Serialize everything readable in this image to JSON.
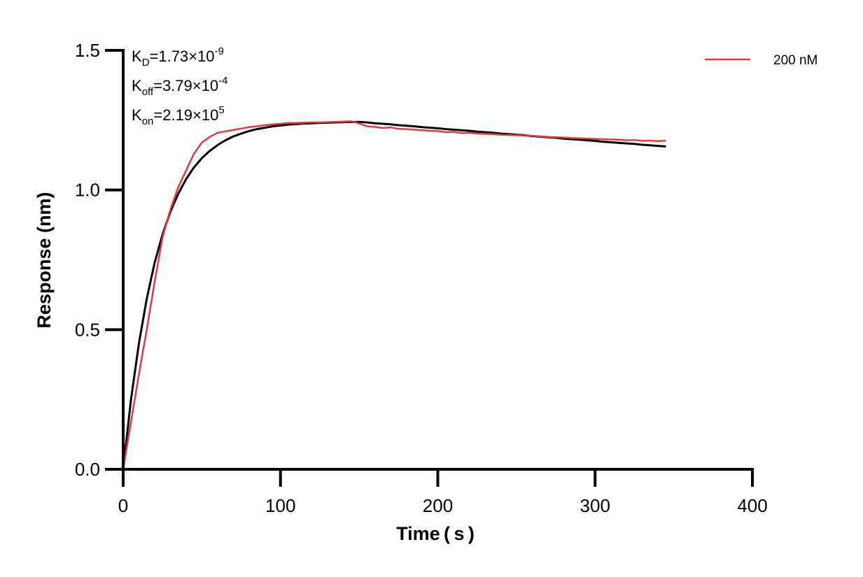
{
  "chart_data": {
    "type": "line",
    "xlabel": "Time ( s )",
    "ylabel": "Response (nm)",
    "xlim": [
      0,
      400
    ],
    "ylim": [
      0,
      1.5
    ],
    "xticks": [
      "0",
      "100",
      "200",
      "300",
      "400"
    ],
    "yticks": [
      "0.0",
      "0.5",
      "1.0",
      "1.5"
    ],
    "xtick_values": [
      0,
      100,
      200,
      300,
      400
    ],
    "ytick_values": [
      0,
      0.5,
      1.0,
      1.5
    ],
    "grid": false,
    "legend_position": "top-right",
    "annotations": [
      {
        "base": "K",
        "sub": "D",
        "text": "=1.73×10",
        "sup": "-9"
      },
      {
        "base": "K",
        "sub": "off",
        "text": "=3.79×10",
        "sup": "-4"
      },
      {
        "base": "K",
        "sub": "on",
        "text": "=2.19×10",
        "sup": "5"
      }
    ],
    "x": [
      0,
      5,
      10,
      15,
      20,
      25,
      30,
      35,
      40,
      45,
      50,
      55,
      60,
      65,
      70,
      75,
      80,
      85,
      90,
      95,
      100,
      105,
      110,
      115,
      120,
      125,
      130,
      135,
      140,
      145,
      150,
      155,
      160,
      165,
      170,
      175,
      180,
      185,
      190,
      195,
      200,
      205,
      210,
      215,
      220,
      225,
      230,
      235,
      240,
      245,
      250,
      255,
      260,
      265,
      270,
      275,
      280,
      285,
      290,
      295,
      300,
      305,
      310,
      315,
      320,
      325,
      330,
      335,
      340,
      345
    ],
    "series": [
      {
        "name": "200 nM",
        "color": "#e0393e",
        "in_legend": true,
        "values": [
          0,
          0.17,
          0.34,
          0.5,
          0.67,
          0.83,
          0.93,
          1.01,
          1.07,
          1.13,
          1.17,
          1.19,
          1.205,
          1.21,
          1.215,
          1.22,
          1.225,
          1.228,
          1.232,
          1.235,
          1.237,
          1.24,
          1.24,
          1.241,
          1.242,
          1.242,
          1.243,
          1.244,
          1.245,
          1.246,
          1.238,
          1.228,
          1.226,
          1.222,
          1.224,
          1.219,
          1.218,
          1.216,
          1.214,
          1.212,
          1.211,
          1.207,
          1.208,
          1.204,
          1.205,
          1.202,
          1.201,
          1.2,
          1.198,
          1.197,
          1.196,
          1.195,
          1.194,
          1.192,
          1.19,
          1.189,
          1.188,
          1.186,
          1.185,
          1.184,
          1.183,
          1.182,
          1.181,
          1.18,
          1.178,
          1.179,
          1.176,
          1.177,
          1.175,
          1.177
        ]
      },
      {
        "name": "Fit",
        "color": "#000000",
        "in_legend": false,
        "values": [
          0,
          0.251,
          0.451,
          0.611,
          0.739,
          0.841,
          0.922,
          0.987,
          1.039,
          1.081,
          1.114,
          1.14,
          1.161,
          1.178,
          1.192,
          1.202,
          1.211,
          1.218,
          1.223,
          1.228,
          1.231,
          1.234,
          1.236,
          1.238,
          1.239,
          1.24,
          1.241,
          1.242,
          1.243,
          1.243,
          1.244,
          1.242,
          1.239,
          1.237,
          1.235,
          1.232,
          1.23,
          1.228,
          1.225,
          1.223,
          1.221,
          1.218,
          1.216,
          1.214,
          1.212,
          1.209,
          1.207,
          1.205,
          1.202,
          1.2,
          1.198,
          1.196,
          1.193,
          1.191,
          1.189,
          1.187,
          1.184,
          1.182,
          1.18,
          1.178,
          1.176,
          1.173,
          1.171,
          1.169,
          1.167,
          1.165,
          1.162,
          1.16,
          1.158,
          1.156
        ]
      }
    ]
  }
}
